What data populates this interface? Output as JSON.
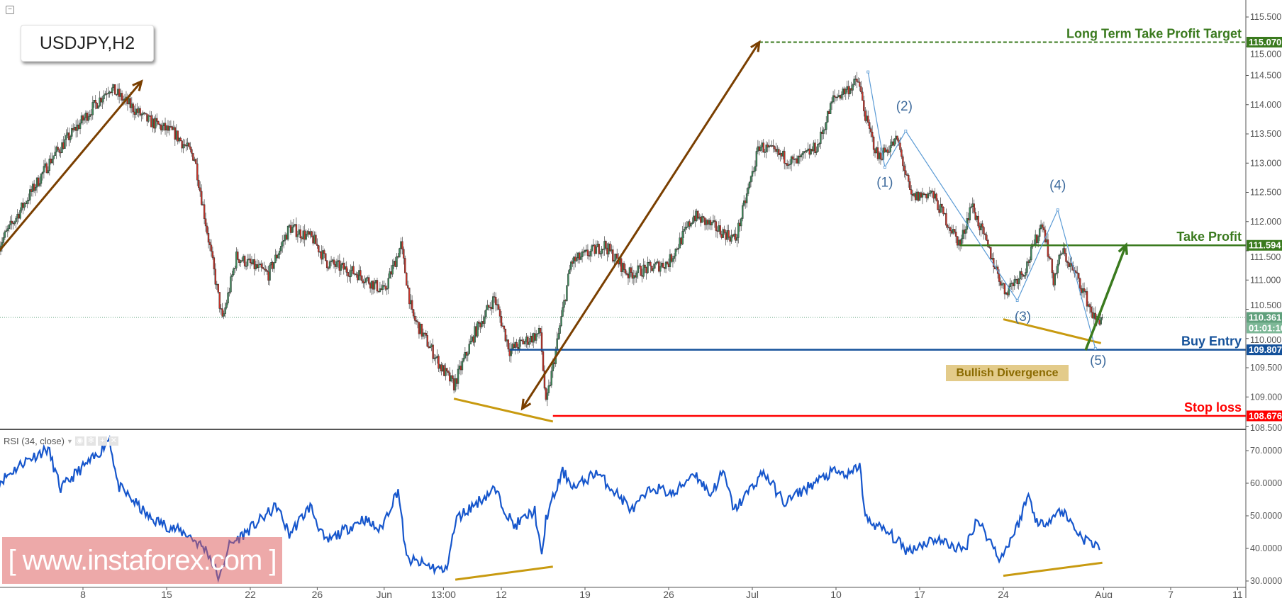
{
  "header": {
    "symbol_label": "USDJPY,H2",
    "collapse_icon": "minus-square-icon"
  },
  "indicator": {
    "label": "RSI (34, close)",
    "icons": [
      "eye-icon",
      "gear-icon",
      "plus-icon",
      "close-icon"
    ]
  },
  "watermark": "[ www.instaforex.com ]",
  "annotation_label": "Bullish Divergence",
  "colors": {
    "up_candle": "#3f8a5c",
    "down_candle": "#c8342a",
    "candle_outline": "#222222",
    "long_term_target": "#3a7a1e",
    "take_profit": "#3a7a1e",
    "buy_entry": "#14519a",
    "stop_loss": "#ff0000",
    "current_price": "#5fa07c",
    "rsi_line": "#1656cc",
    "trend_arrow": "#7a3f00",
    "divergence_line": "#c89a10",
    "wave_line": "#5b9bd5",
    "target_arrow": "#3a7a1e"
  },
  "chart_data": [
    {
      "type": "candlestick",
      "title": "USDJPY,H2",
      "timeframe": "H2",
      "ylim": [
        108.5,
        115.5
      ],
      "y_ticks": [
        "108.500",
        "109.000",
        "109.500",
        "110.000",
        "110.500",
        "111.000",
        "111.500",
        "112.000",
        "112.500",
        "113.000",
        "113.500",
        "114.000",
        "114.500",
        "115.000",
        "115.500"
      ],
      "x_ticks": [
        "8",
        "15",
        "22",
        "26",
        "Jun",
        "13:00",
        "12",
        "19",
        "26",
        "Jul",
        "10",
        "17",
        "24",
        "Aug",
        "7",
        "11"
      ],
      "x_tick_dates": [
        "05-08 00",
        "05-15 00",
        "05-22 00",
        "05-26 00",
        "06-01 00",
        "06-06 13",
        "06-12 00",
        "06-19 00",
        "06-26 00",
        "07-03 00",
        "07-10 00",
        "07-17 00",
        "07-24 00",
        "08-01 00",
        "08-07 00",
        "08-11 00"
      ],
      "price_path": [
        [
          "05-01 00",
          111.6
        ],
        [
          "05-04 04",
          113.1
        ],
        [
          "05-09 14",
          114.3
        ],
        [
          "05-11 18",
          113.75
        ],
        [
          "05-15 12",
          113.5
        ],
        [
          "05-16 16",
          113.1
        ],
        [
          "05-17 12",
          111.7
        ],
        [
          "05-18 08",
          110.3
        ],
        [
          "05-19 04",
          111.4
        ],
        [
          "05-23 02",
          111.1
        ],
        [
          "05-24 08",
          111.9
        ],
        [
          "05-25 18",
          111.7
        ],
        [
          "05-26 14",
          111.3
        ],
        [
          "05-30 12",
          111.1
        ],
        [
          "06-01 00",
          110.8
        ],
        [
          "06-02 00",
          111.6
        ],
        [
          "06-02 16",
          110.4
        ],
        [
          "06-06 10",
          109.5
        ],
        [
          "06-07 04",
          109.2
        ],
        [
          "06-08 10",
          110.1
        ],
        [
          "06-09 14",
          110.7
        ],
        [
          "06-12 12",
          109.8
        ],
        [
          "06-14 08",
          110.1
        ],
        [
          "06-14 16",
          108.85
        ],
        [
          "06-15 12",
          110.2
        ],
        [
          "06-16 04",
          111.3
        ],
        [
          "06-20 04",
          111.6
        ],
        [
          "06-21 14",
          111.1
        ],
        [
          "06-26 00",
          111.3
        ],
        [
          "06-27 12",
          112.1
        ],
        [
          "06-30 00",
          111.7
        ],
        [
          "07-03 10",
          113.3
        ],
        [
          "07-05 14",
          113.0
        ],
        [
          "07-06 22",
          113.3
        ],
        [
          "07-07 20",
          114.1
        ],
        [
          "07-11 08",
          114.4
        ],
        [
          "07-11 20",
          113.7
        ],
        [
          "07-12 12",
          113.1
        ],
        [
          "07-13 16",
          113.4
        ],
        [
          "07-14 12",
          112.4
        ],
        [
          "07-17 16",
          112.5
        ],
        [
          "07-19 10",
          111.6
        ],
        [
          "07-20 02",
          112.3
        ],
        [
          "07-24 02",
          110.8
        ],
        [
          "07-25 08",
          111.2
        ],
        [
          "07-26 08",
          112.0
        ],
        [
          "07-27 00",
          111.0
        ],
        [
          "07-27 12",
          111.5
        ],
        [
          "07-28 12",
          111.0
        ],
        [
          "07-31 12",
          110.3
        ],
        [
          "07-31 22",
          110.361
        ]
      ],
      "current_price": {
        "value": "110.361",
        "countdown": "01:01:16"
      },
      "levels": [
        {
          "name": "long-term-take-profit-target",
          "label": "Long Term Take Profit Target",
          "price": 115.07,
          "price_label": "115.070",
          "style": "dashed",
          "color": "#3a7a1e",
          "from": "07-03 10"
        },
        {
          "name": "take-profit",
          "label": "Take Profit",
          "price": 111.594,
          "price_label": "111.594",
          "style": "solid",
          "color": "#3a7a1e",
          "from": "07-19 10"
        },
        {
          "name": "buy-entry",
          "label": "Buy Entry",
          "price": 109.807,
          "price_label": "109.807",
          "style": "solid",
          "color": "#14519a",
          "from": "06-12 12"
        },
        {
          "name": "stop-loss",
          "label": "Stop loss",
          "price": 108.676,
          "price_label": "108.676",
          "style": "solid",
          "color": "#ff0000",
          "from": "06-15 02"
        }
      ],
      "trend_arrows": [
        {
          "from": [
            "05-01 00",
            111.5
          ],
          "to": [
            "05-11 12",
            114.4
          ],
          "heads": "end"
        },
        {
          "from": [
            "06-13 06",
            108.8
          ],
          "to": [
            "07-03 10",
            115.07
          ],
          "heads": "both"
        }
      ],
      "divergence_line": {
        "from": [
          "06-07 04",
          108.97
        ],
        "to": [
          "06-15 02",
          108.58
        ]
      },
      "divergence_line_2": {
        "from": [
          "07-24 00",
          110.33
        ],
        "to": [
          "07-31 20",
          109.92
        ]
      },
      "wave_path": [
        [
          "07-11 22",
          114.56
        ],
        [
          "07-12 22",
          112.93
        ],
        [
          "07-14 04",
          113.55
        ],
        [
          "07-24 20",
          110.65
        ],
        [
          "07-27 06",
          112.2
        ],
        [
          "07-31 12",
          109.83
        ]
      ],
      "wave_labels": [
        {
          "text": "(1)",
          "at": [
            "07-12 22",
            112.6
          ]
        },
        {
          "text": "(2)",
          "at": [
            "07-14 02",
            113.9
          ]
        },
        {
          "text": "(3)",
          "at": [
            "07-25 04",
            110.3
          ]
        },
        {
          "text": "(4)",
          "at": [
            "07-27 06",
            112.55
          ]
        },
        {
          "text": "(5)",
          "at": [
            "07-31 16",
            109.55
          ]
        }
      ],
      "target_arrow": {
        "from": [
          "07-28 22",
          109.8
        ],
        "to": [
          "08-02 08",
          111.6
        ]
      }
    },
    {
      "type": "line",
      "title": "RSI (34, close)",
      "ylim": [
        28,
        75
      ],
      "y_ticks": [
        "30.0000",
        "40.0000",
        "50.0000",
        "60.0000",
        "70.0000"
      ],
      "values": [
        [
          "05-01 00",
          60.4
        ],
        [
          "05-02 12",
          66.7
        ],
        [
          "05-03 22",
          70.6
        ],
        [
          "05-04 16",
          58.2
        ],
        [
          "05-05 16",
          63.5
        ],
        [
          "05-08 20",
          68.4
        ],
        [
          "05-09 14",
          74
        ],
        [
          "05-10 02",
          59.2
        ],
        [
          "05-11 02",
          54.2
        ],
        [
          "05-12 00",
          49.2
        ],
        [
          "05-16 06",
          44.3
        ],
        [
          "05-17 10",
          39.3
        ],
        [
          "05-18 04",
          30.5
        ],
        [
          "05-18 16",
          40.5
        ],
        [
          "05-22 04",
          46.8
        ],
        [
          "05-23 14",
          53
        ],
        [
          "05-24 08",
          44.3
        ],
        [
          "05-25 14",
          53
        ],
        [
          "05-26 12",
          41.8
        ],
        [
          "05-30 18",
          49.2
        ],
        [
          "05-31 18",
          45.5
        ],
        [
          "06-01 20",
          58.2
        ],
        [
          "06-02 08",
          36.7
        ],
        [
          "06-05 22",
          34.2
        ],
        [
          "06-06 16",
          33
        ],
        [
          "06-07 08",
          49.2
        ],
        [
          "06-09 14",
          58.2
        ],
        [
          "06-12 18",
          46.8
        ],
        [
          "06-14 00",
          51.7
        ],
        [
          "06-14 10",
          36.7
        ],
        [
          "06-14 16",
          49.2
        ],
        [
          "06-15 16",
          63.5
        ],
        [
          "06-16 10",
          58.5
        ],
        [
          "06-19 16",
          63.5
        ],
        [
          "06-21 20",
          51.7
        ],
        [
          "06-23 02",
          58.9
        ],
        [
          "06-26 08",
          56.5
        ],
        [
          "06-27 12",
          63.5
        ],
        [
          "06-28 12",
          56.5
        ],
        [
          "06-29 06",
          63.5
        ],
        [
          "06-29 22",
          51.7
        ],
        [
          "07-03 16",
          63.5
        ],
        [
          "07-04 22",
          54
        ],
        [
          "07-06 08",
          58.9
        ],
        [
          "07-07 20",
          63.5
        ],
        [
          "07-10 20",
          62.3
        ],
        [
          "07-11 10",
          66
        ],
        [
          "07-11 18",
          49.2
        ],
        [
          "07-13 06",
          44.3
        ],
        [
          "07-14 06",
          39.3
        ],
        [
          "07-17 22",
          43
        ],
        [
          "07-19 16",
          39.3
        ],
        [
          "07-20 10",
          49.2
        ],
        [
          "07-21 20",
          36.7
        ],
        [
          "07-24 20",
          46.8
        ],
        [
          "07-25 12",
          56.5
        ],
        [
          "07-26 02",
          46.8
        ],
        [
          "07-27 12",
          51.7
        ],
        [
          "07-28 18",
          43
        ],
        [
          "07-31 20",
          40.5
        ]
      ],
      "divergence_lines": [
        {
          "from": [
            "06-07 06",
            30.4
          ],
          "to": [
            "06-15 02",
            34.4
          ]
        },
        {
          "from": [
            "07-24 00",
            31.6
          ],
          "to": [
            "07-31 22",
            35.6
          ]
        }
      ]
    }
  ]
}
